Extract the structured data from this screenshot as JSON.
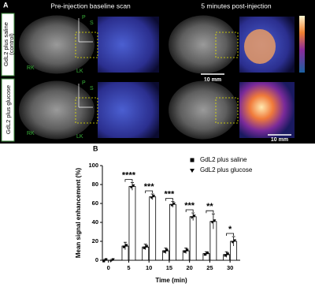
{
  "panel_a": {
    "label": "A",
    "column_titles": [
      "Pre-injection baseline scan",
      "5 minutes post-injection"
    ],
    "row_labels": [
      [
        "GdL2 plus saline",
        "(control)"
      ],
      [
        "GdL2 plus glucose"
      ]
    ],
    "rows": [
      {
        "P": "P",
        "S": "S",
        "RK": "RK",
        "LK": "LK",
        "scale_bar": "10 mm"
      },
      {
        "P": "P",
        "S": "S",
        "RK": "RK",
        "LK": "LK",
        "scale_bar": "10 mm"
      }
    ]
  },
  "chart_data": {
    "type": "bar",
    "panel_label": "B",
    "ylabel": "Mean signal enhancement (%)",
    "xlabel": "Time (min)",
    "x": [
      0,
      5,
      10,
      15,
      20,
      25,
      30
    ],
    "xlim": [
      -1.5,
      32.5
    ],
    "xticks": [
      0,
      5,
      10,
      15,
      20,
      25,
      30
    ],
    "ylim": [
      0,
      100
    ],
    "yticks": [
      0,
      20,
      40,
      60,
      80,
      100
    ],
    "series": [
      {
        "name": "GdL2 plus saline",
        "marker": "square",
        "color": "#000000",
        "values": [
          0,
          15,
          14,
          10,
          10,
          7,
          6
        ],
        "errors": [
          1,
          4,
          3,
          3,
          3,
          2,
          3
        ]
      },
      {
        "name": "GdL2 plus glucose",
        "marker": "triangle",
        "color": "#000000",
        "values": [
          0,
          78,
          67,
          59,
          46,
          41,
          20
        ],
        "errors": [
          1,
          4,
          3,
          3,
          4,
          8,
          5
        ]
      }
    ],
    "significance": [
      null,
      "****",
      "***",
      "***",
      "***",
      "**",
      "*"
    ],
    "legend": "upper right"
  }
}
